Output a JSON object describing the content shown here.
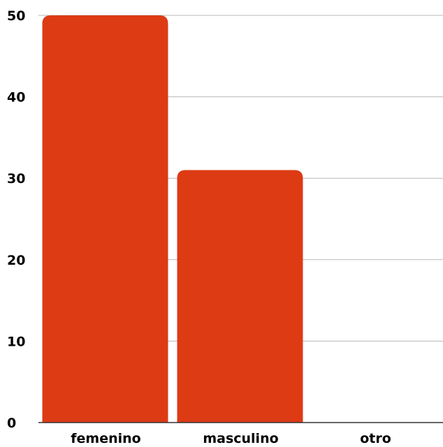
{
  "chart_data": {
    "type": "bar",
    "categories": [
      "femenino",
      "masculino",
      "otro"
    ],
    "values": [
      50,
      31,
      0
    ],
    "title": "",
    "xlabel": "",
    "ylabel": "",
    "ylim": [
      0,
      50
    ],
    "yticks": [
      "0",
      "10",
      "20",
      "30",
      "40",
      "50"
    ],
    "grid": true,
    "legend": "none",
    "bar_color": "#DD3B14",
    "grid_color": "#B8B8B8"
  }
}
